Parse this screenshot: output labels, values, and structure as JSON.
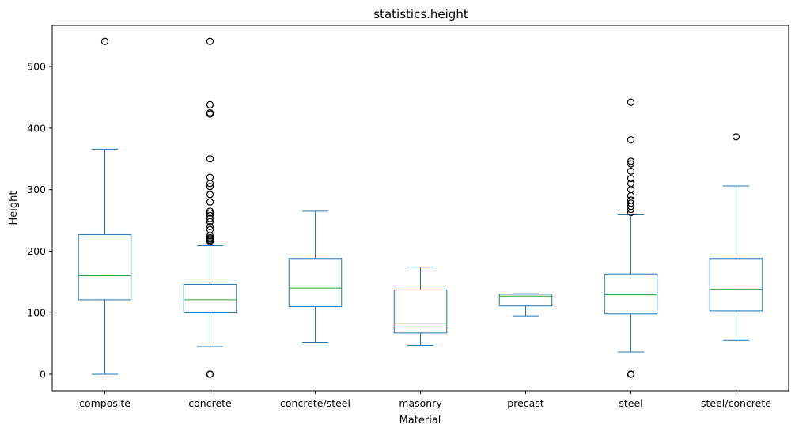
{
  "chart_data": {
    "type": "box",
    "title": "statistics.height",
    "xlabel": "Material",
    "ylabel": "Height",
    "ylim": [
      -27,
      567
    ],
    "yticks": [
      0,
      100,
      200,
      300,
      400,
      500
    ],
    "grid": false,
    "colors": {
      "box": "#1f77b4",
      "median": "#2ca02c",
      "outlier": "#000000"
    },
    "categories": [
      "composite",
      "concrete",
      "concrete/steel",
      "masonry",
      "precast",
      "steel",
      "steel/concrete"
    ],
    "boxes": [
      {
        "category": "composite",
        "whisker_low": 0,
        "q1": 121,
        "median": 160,
        "q3": 227,
        "whisker_high": 366,
        "outliers": [
          541
        ]
      },
      {
        "category": "concrete",
        "whisker_low": 45,
        "q1": 101,
        "median": 121,
        "q3": 146,
        "whisker_high": 209,
        "outliers": [
          0,
          0,
          0,
          216,
          218,
          220,
          222,
          225,
          235,
          240,
          248,
          253,
          258,
          262,
          265,
          280,
          292,
          305,
          310,
          320,
          350,
          423,
          425,
          438,
          541
        ]
      },
      {
        "category": "concrete/steel",
        "whisker_low": 52,
        "q1": 110,
        "median": 140,
        "q3": 188,
        "whisker_high": 265,
        "outliers": []
      },
      {
        "category": "masonry",
        "whisker_low": 47,
        "q1": 67,
        "median": 82,
        "q3": 137,
        "whisker_high": 174,
        "outliers": []
      },
      {
        "category": "precast",
        "whisker_low": 95,
        "q1": 111,
        "median": 127,
        "q3": 130,
        "whisker_high": 131,
        "outliers": []
      },
      {
        "category": "steel",
        "whisker_low": 36,
        "q1": 98,
        "median": 129,
        "q3": 163,
        "whisker_high": 259,
        "outliers": [
          0,
          0,
          0,
          263,
          268,
          273,
          278,
          283,
          290,
          300,
          310,
          318,
          330,
          342,
          346,
          381,
          442
        ]
      },
      {
        "category": "steel/concrete",
        "whisker_low": 55,
        "q1": 103,
        "median": 138,
        "q3": 188,
        "whisker_high": 306,
        "outliers": [
          386
        ]
      }
    ]
  }
}
